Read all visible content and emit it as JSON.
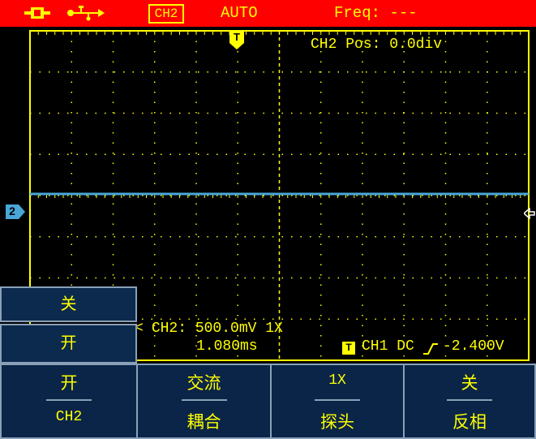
{
  "topbar": {
    "channel_badge": "CH2",
    "trigger_mode": "AUTO",
    "freq_label": "Freq: ---",
    "icons": [
      "battery-plug-icon",
      "usb-icon"
    ]
  },
  "overlay": {
    "trigger_marker": "T",
    "ch2_pos": "CH2 Pos: 0.0div",
    "ch2_marker": "2",
    "ch2_scale": "CH2: 500.0mV 1X",
    "timebase": "1.080ms",
    "trigger_box": "T",
    "trigger_info": "CH1 DC",
    "trigger_level": "-2.400V"
  },
  "side_menu": {
    "items": [
      "关",
      "开"
    ]
  },
  "bottom_menu": {
    "items": [
      {
        "top": "开",
        "bottom": "CH2"
      },
      {
        "top": "交流",
        "bottom": "耦合"
      },
      {
        "top": "1X",
        "bottom": "探头"
      },
      {
        "top": "关",
        "bottom": "反相"
      }
    ]
  },
  "colors": {
    "topbar_bg": "#ff0000",
    "text": "#ffff00",
    "grid": "#ffff00",
    "trace": "#49a6d8",
    "menu_bg": "#0b2548"
  }
}
